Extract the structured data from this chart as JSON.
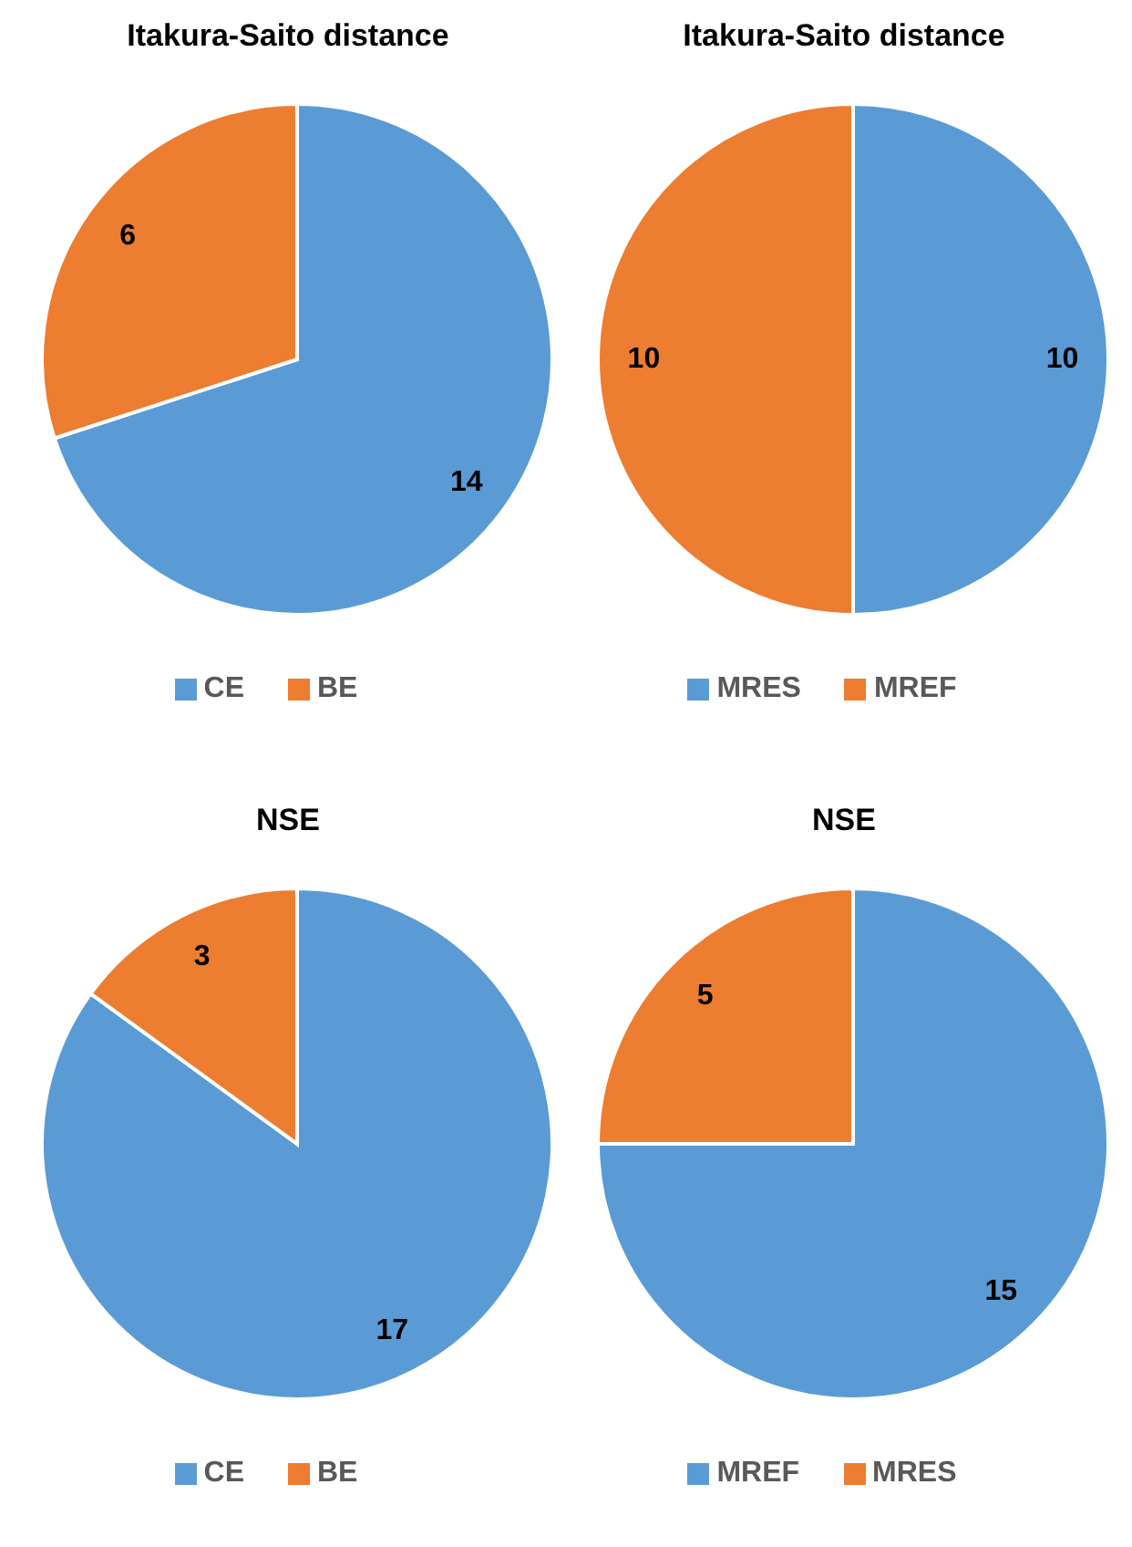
{
  "chart_data": [
    {
      "type": "pie",
      "title": "Itakura-Saito distance",
      "categories": [
        "CE",
        "BE"
      ],
      "values": [
        14,
        6
      ],
      "colors": [
        "#5b9bd5",
        "#ed7d31"
      ],
      "data_labels": true,
      "legend": "bottom"
    },
    {
      "type": "pie",
      "title": "Itakura-Saito distance",
      "categories": [
        "MRES",
        "MREF"
      ],
      "values": [
        10,
        10
      ],
      "colors": [
        "#5b9bd5",
        "#ed7d31"
      ],
      "data_labels": true,
      "legend": "bottom"
    },
    {
      "type": "pie",
      "title": "NSE",
      "categories": [
        "CE",
        "BE"
      ],
      "values": [
        17,
        3
      ],
      "colors": [
        "#5b9bd5",
        "#ed7d31"
      ],
      "data_labels": true,
      "legend": "bottom"
    },
    {
      "type": "pie",
      "title": "NSE",
      "categories": [
        "MREF",
        "MRES"
      ],
      "values": [
        15,
        5
      ],
      "colors": [
        "#5b9bd5",
        "#ed7d31"
      ],
      "data_labels": true,
      "legend": "bottom"
    }
  ]
}
